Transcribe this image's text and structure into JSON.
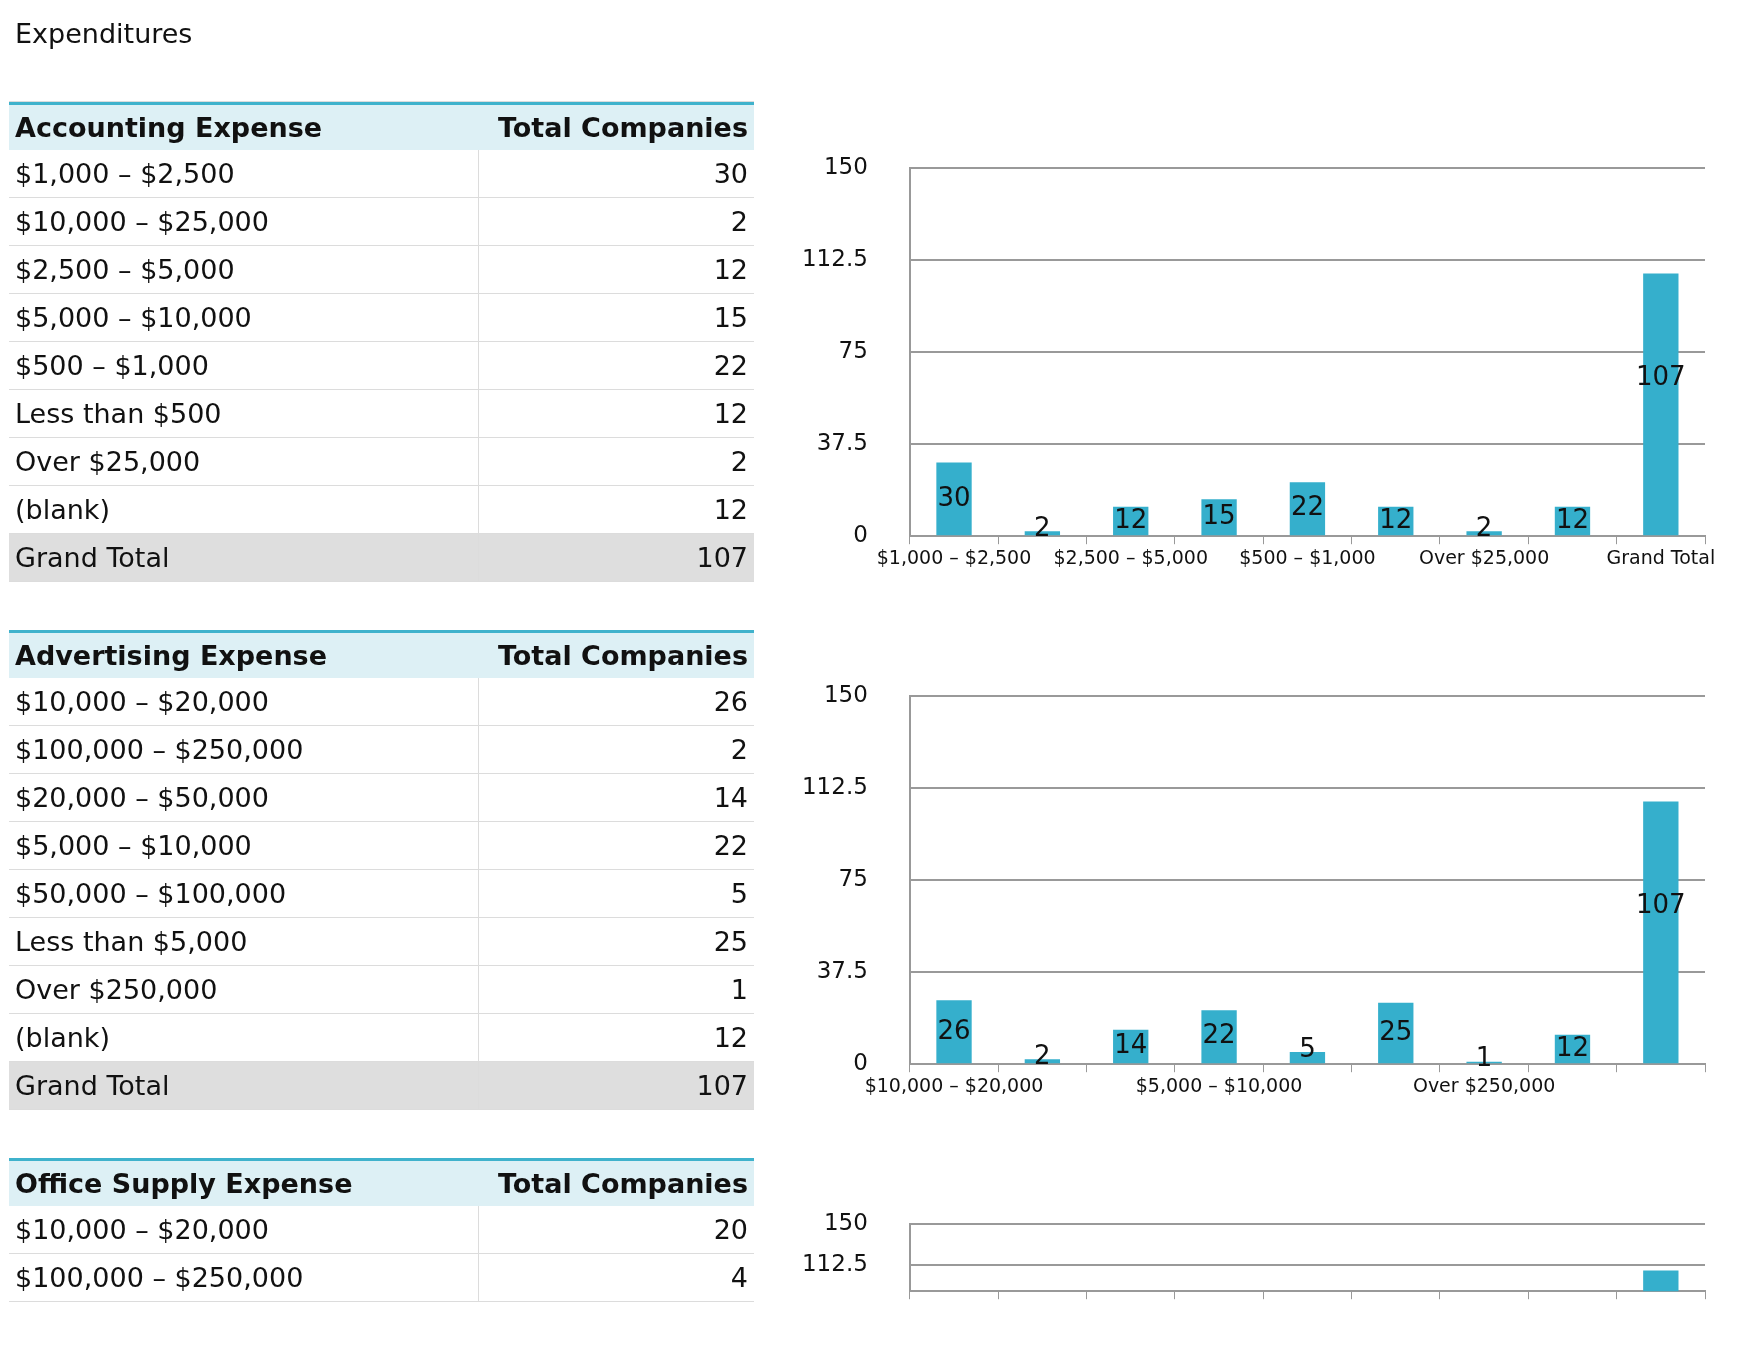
{
  "chart_data": [
    {
      "type": "other",
      "title": "Expenditures",
      "xlabel": "Accounting Expense",
      "ylabel": "Total Companies",
      "categories": [
        "$1,000 – $2,500",
        "$10,000 – $25,000",
        "$2,500 – $5,000",
        "$5,000 – $10,000",
        "$500 – $1,000",
        "Less than $500",
        "Over $25,000",
        "(blank)",
        "Grand Total"
      ],
      "values": [
        30,
        2,
        12,
        15,
        22,
        12,
        2,
        12,
        107
      ],
      "data_labels": true
    },
    {
      "type": "bar",
      "categories": [
        "$1,000 – $2,500",
        null,
        "$2,500 – $5,000",
        null,
        "$500 – $1,000",
        null,
        "Over $25,000",
        null,
        "Grand Total"
      ],
      "values": [
        30,
        2,
        12,
        15,
        22,
        12,
        2,
        12,
        107
      ],
      "color": "#35afcc",
      "ylim": [
        0,
        150
      ],
      "yticks": [
        0,
        37.5,
        75,
        112.5,
        150
      ],
      "grid": "y",
      "data_labels": true
    },
    {
      "type": "other",
      "xlabel": "Advertising Expense",
      "ylabel": "Total Companies",
      "categories": [
        "$10,000 – $20,000",
        "$100,000 – $250,000",
        "$20,000 – $50,000",
        "$5,000 – $10,000",
        "$50,000 – $100,000",
        "Less than $5,000",
        "Over $250,000",
        "(blank)",
        "Grand Total"
      ],
      "values": [
        26,
        2,
        14,
        22,
        5,
        25,
        1,
        12,
        107
      ],
      "data_labels": true
    },
    {
      "type": "bar",
      "categories": [
        "$10,000 – $20,000",
        null,
        null,
        "$5,000 – $10,000",
        null,
        null,
        "Over $250,000",
        null,
        null
      ],
      "values": [
        26,
        2,
        14,
        22,
        5,
        25,
        1,
        12,
        107
      ],
      "color": "#35afcc",
      "ylim": [
        0,
        150
      ],
      "yticks": [
        0,
        37.5,
        75,
        112.5,
        150
      ],
      "grid": "y",
      "data_labels": true
    },
    {
      "type": "other",
      "xlabel": "Office Supply Expense",
      "ylabel": "Total Companies",
      "categories": [
        "$10,000 – $20,000",
        "$100,000 – $250,000"
      ],
      "values": [
        20,
        4
      ],
      "data_labels": true
    },
    {
      "type": "bar",
      "categories": [
        null,
        null,
        null,
        null,
        null,
        null,
        null,
        null,
        null
      ],
      "values": [
        null,
        null,
        null,
        null,
        null,
        null,
        null,
        null,
        107
      ],
      "color": "#35afcc",
      "ylim": [
        88,
        150
      ],
      "yticks": [
        112.5,
        150
      ],
      "grid": "y"
    }
  ]
}
